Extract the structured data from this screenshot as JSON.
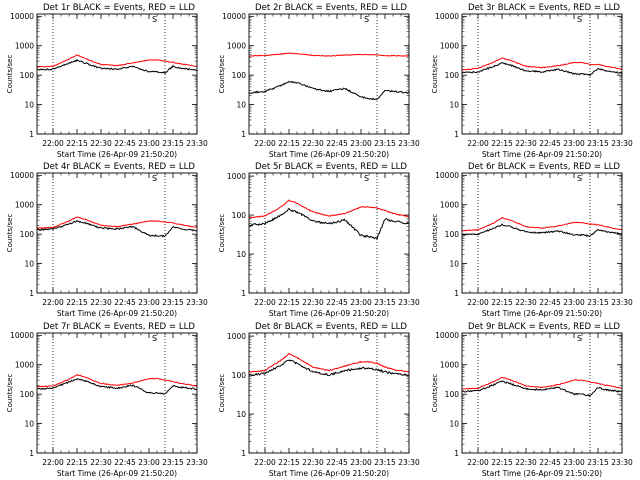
{
  "figure": {
    "x_tick_labels": [
      "22:00",
      "22:15",
      "22:30",
      "22:45",
      "23:00",
      "23:15",
      "23:30"
    ],
    "colors": {
      "events": "#000000",
      "lld": "#ff0000",
      "background": "#ffffff"
    }
  },
  "chart_data": [
    {
      "type": "line",
      "title": "Det 1r BLACK = Events, RED = LLD",
      "xlabel": "Start Time (26-Apr-09 21:50:20)",
      "ylabel": "Counts/sec",
      "yscale": "log",
      "ylim": [
        1,
        12000
      ],
      "x_tick_labels": [
        "22:00",
        "22:15",
        "22:30",
        "22:45",
        "23:00",
        "23:15",
        "23:30"
      ],
      "y_tick_labels": [
        "1",
        "10",
        "100",
        "1000",
        "10000"
      ],
      "dotted_vlines": [
        "22:00",
        "23:10"
      ],
      "marker_label": "S",
      "x": [
        "21:50",
        "22:00",
        "22:10",
        "22:15",
        "22:20",
        "22:30",
        "22:40",
        "22:50",
        "23:00",
        "23:05",
        "23:10",
        "23:15",
        "23:20",
        "23:30"
      ],
      "series": [
        {
          "name": "BLACK = Events",
          "values": [
            150,
            160,
            250,
            320,
            260,
            170,
            160,
            200,
            130,
            130,
            120,
            200,
            170,
            150
          ]
        },
        {
          "name": "RED = LLD",
          "values": [
            190,
            200,
            350,
            480,
            370,
            230,
            210,
            260,
            330,
            330,
            300,
            270,
            240,
            200
          ]
        }
      ]
    },
    {
      "type": "line",
      "title": "Det 2r BLACK = Events, RED = LLD",
      "xlabel": "Start Time (26-Apr-09 21:50:20)",
      "ylabel": "Counts/sec",
      "yscale": "log",
      "ylim": [
        1,
        12000
      ],
      "x_tick_labels": [
        "22:00",
        "22:15",
        "22:30",
        "22:45",
        "23:00",
        "23:15",
        "23:30"
      ],
      "y_tick_labels": [
        "1",
        "10",
        "100",
        "1000",
        "10000"
      ],
      "dotted_vlines": [
        "22:00",
        "23:10"
      ],
      "marker_label": "S",
      "x": [
        "21:50",
        "22:00",
        "22:10",
        "22:15",
        "22:20",
        "22:30",
        "22:40",
        "22:50",
        "23:00",
        "23:05",
        "23:10",
        "23:15",
        "23:20",
        "23:30"
      ],
      "series": [
        {
          "name": "BLACK = Events",
          "values": [
            25,
            28,
            45,
            60,
            55,
            35,
            28,
            35,
            18,
            16,
            15,
            30,
            28,
            25
          ]
        },
        {
          "name": "RED = LLD",
          "values": [
            450,
            470,
            520,
            560,
            540,
            470,
            450,
            480,
            500,
            500,
            490,
            460,
            460,
            450
          ]
        }
      ]
    },
    {
      "type": "line",
      "title": "Det 3r BLACK = Events, RED = LLD",
      "xlabel": "Start Time (26-Apr-09 21:50:20)",
      "ylabel": "Counts/sec",
      "yscale": "log",
      "ylim": [
        1,
        12000
      ],
      "x_tick_labels": [
        "22:00",
        "22:15",
        "22:30",
        "22:45",
        "23:00",
        "23:15",
        "23:30"
      ],
      "y_tick_labels": [
        "1",
        "10",
        "100",
        "1000",
        "10000"
      ],
      "dotted_vlines": [
        "22:00",
        "23:10"
      ],
      "marker_label": "S",
      "x": [
        "21:50",
        "22:00",
        "22:10",
        "22:15",
        "22:20",
        "22:30",
        "22:40",
        "22:50",
        "23:00",
        "23:05",
        "23:10",
        "23:15",
        "23:20",
        "23:30"
      ],
      "series": [
        {
          "name": "BLACK = Events",
          "values": [
            120,
            130,
            200,
            260,
            220,
            140,
            130,
            160,
            110,
            110,
            100,
            170,
            140,
            120
          ]
        },
        {
          "name": "RED = LLD",
          "values": [
            150,
            170,
            280,
            380,
            320,
            200,
            180,
            210,
            270,
            270,
            230,
            230,
            200,
            160
          ]
        }
      ]
    },
    {
      "type": "line",
      "title": "Det 4r BLACK = Events, RED = LLD",
      "xlabel": "Start Time (26-Apr-09 21:50:20)",
      "ylabel": "Counts/sec",
      "yscale": "log",
      "ylim": [
        1,
        12000
      ],
      "x_tick_labels": [
        "22:00",
        "22:15",
        "22:30",
        "22:45",
        "23:00",
        "23:15",
        "23:30"
      ],
      "y_tick_labels": [
        "1",
        "10",
        "100",
        "1000",
        "10000"
      ],
      "dotted_vlines": [
        "22:00",
        "23:10"
      ],
      "marker_label": "S",
      "x": [
        "21:50",
        "22:00",
        "22:10",
        "22:15",
        "22:20",
        "22:30",
        "22:40",
        "22:50",
        "23:00",
        "23:05",
        "23:10",
        "23:15",
        "23:20",
        "23:30"
      ],
      "series": [
        {
          "name": "BLACK = Events",
          "values": [
            140,
            150,
            220,
            280,
            240,
            160,
            150,
            180,
            90,
            90,
            85,
            180,
            150,
            130
          ]
        },
        {
          "name": "RED = LLD",
          "values": [
            160,
            170,
            280,
            380,
            320,
            200,
            180,
            220,
            280,
            280,
            260,
            240,
            210,
            170
          ]
        }
      ]
    },
    {
      "type": "line",
      "title": "Det 5r BLACK = Events, RED = LLD",
      "xlabel": "Start Time (26-Apr-09 21:50:20)",
      "ylabel": "Counts/sec",
      "yscale": "log",
      "ylim": [
        1,
        1200
      ],
      "x_tick_labels": [
        "22:00",
        "22:15",
        "22:30",
        "22:45",
        "23:00",
        "23:15",
        "23:30"
      ],
      "y_tick_labels": [
        "1",
        "10",
        "100",
        "1000"
      ],
      "dotted_vlines": [
        "22:00",
        "23:10"
      ],
      "marker_label": "S",
      "x": [
        "21:50",
        "22:00",
        "22:10",
        "22:15",
        "22:20",
        "22:30",
        "22:40",
        "22:50",
        "23:00",
        "23:05",
        "23:10",
        "23:15",
        "23:20",
        "23:30"
      ],
      "series": [
        {
          "name": "BLACK = Events",
          "values": [
            55,
            60,
            100,
            140,
            120,
            70,
            60,
            75,
            30,
            28,
            25,
            80,
            70,
            60
          ]
        },
        {
          "name": "RED = LLD",
          "values": [
            85,
            95,
            160,
            240,
            200,
            120,
            95,
            110,
            160,
            160,
            150,
            130,
            110,
            90
          ]
        }
      ]
    },
    {
      "type": "line",
      "title": "Det 6r BLACK = Events, RED = LLD",
      "xlabel": "Start Time (26-Apr-09 21:50:20)",
      "ylabel": "Counts/sec",
      "yscale": "log",
      "ylim": [
        1,
        12000
      ],
      "x_tick_labels": [
        "22:00",
        "22:15",
        "22:30",
        "22:45",
        "23:00",
        "23:15",
        "23:30"
      ],
      "y_tick_labels": [
        "1",
        "10",
        "100",
        "1000",
        "10000"
      ],
      "dotted_vlines": [
        "22:00",
        "23:10"
      ],
      "marker_label": "S",
      "x": [
        "21:50",
        "22:00",
        "22:10",
        "22:15",
        "22:20",
        "22:30",
        "22:40",
        "22:50",
        "23:00",
        "23:05",
        "23:10",
        "23:15",
        "23:20",
        "23:30"
      ],
      "series": [
        {
          "name": "BLACK = Events",
          "values": [
            95,
            100,
            160,
            210,
            180,
            120,
            110,
            130,
            95,
            95,
            85,
            140,
            120,
            100
          ]
        },
        {
          "name": "RED = LLD",
          "values": [
            130,
            140,
            240,
            360,
            300,
            180,
            160,
            190,
            250,
            250,
            220,
            210,
            180,
            140
          ]
        }
      ]
    },
    {
      "type": "line",
      "title": "Det 7r BLACK = Events, RED = LLD",
      "xlabel": "Start Time (26-Apr-09 21:50:20)",
      "ylabel": "Counts/sec",
      "yscale": "log",
      "ylim": [
        1,
        12000
      ],
      "x_tick_labels": [
        "22:00",
        "22:15",
        "22:30",
        "22:45",
        "23:00",
        "23:15",
        "23:30"
      ],
      "y_tick_labels": [
        "1",
        "10",
        "100",
        "1000",
        "10000"
      ],
      "dotted_vlines": [
        "22:00",
        "23:10"
      ],
      "marker_label": "S",
      "x": [
        "21:50",
        "22:00",
        "22:10",
        "22:15",
        "22:20",
        "22:30",
        "22:40",
        "22:50",
        "23:00",
        "23:05",
        "23:10",
        "23:15",
        "23:20",
        "23:30"
      ],
      "series": [
        {
          "name": "BLACK = Events",
          "values": [
            150,
            160,
            260,
            330,
            280,
            180,
            160,
            200,
            110,
            110,
            100,
            200,
            170,
            150
          ]
        },
        {
          "name": "RED = LLD",
          "values": [
            180,
            190,
            320,
            460,
            380,
            230,
            200,
            240,
            340,
            340,
            300,
            270,
            230,
            190
          ]
        }
      ]
    },
    {
      "type": "line",
      "title": "Det 8r BLACK = Events, RED = LLD",
      "xlabel": "Start Time (26-Apr-09 21:50:20)",
      "ylabel": "Counts/sec",
      "yscale": "log",
      "ylim": [
        1,
        1200
      ],
      "x_tick_labels": [
        "22:00",
        "22:15",
        "22:30",
        "22:45",
        "23:00",
        "23:15",
        "23:30"
      ],
      "y_tick_labels": [
        "1",
        "10",
        "100",
        "1000"
      ],
      "dotted_vlines": [
        "22:00",
        "23:10"
      ],
      "marker_label": "S",
      "x": [
        "21:50",
        "22:00",
        "22:10",
        "22:15",
        "22:20",
        "22:30",
        "22:40",
        "22:50",
        "23:00",
        "23:05",
        "23:10",
        "23:15",
        "23:20",
        "23:30"
      ],
      "series": [
        {
          "name": "BLACK = Events",
          "values": [
            100,
            110,
            180,
            250,
            200,
            120,
            100,
            130,
            150,
            150,
            140,
            120,
            110,
            100
          ]
        },
        {
          "name": "RED = LLD",
          "values": [
            120,
            130,
            240,
            350,
            280,
            160,
            130,
            170,
            220,
            220,
            200,
            160,
            140,
            120
          ]
        }
      ]
    },
    {
      "type": "line",
      "title": "Det 9r BLACK = Events, RED = LLD",
      "xlabel": "Start Time (26-Apr-09 21:50:20)",
      "ylabel": "Counts/sec",
      "yscale": "log",
      "ylim": [
        1,
        12000
      ],
      "x_tick_labels": [
        "22:00",
        "22:15",
        "22:30",
        "22:45",
        "23:00",
        "23:15",
        "23:30"
      ],
      "y_tick_labels": [
        "1",
        "10",
        "100",
        "1000",
        "10000"
      ],
      "dotted_vlines": [
        "22:00",
        "23:10"
      ],
      "marker_label": "S",
      "x": [
        "21:50",
        "22:00",
        "22:10",
        "22:15",
        "22:20",
        "22:30",
        "22:40",
        "22:50",
        "23:00",
        "23:05",
        "23:10",
        "23:15",
        "23:20",
        "23:30"
      ],
      "series": [
        {
          "name": "BLACK = Events",
          "values": [
            120,
            130,
            210,
            270,
            230,
            150,
            140,
            170,
            100,
            100,
            90,
            170,
            140,
            120
          ]
        },
        {
          "name": "RED = LLD",
          "values": [
            150,
            160,
            270,
            370,
            310,
            190,
            170,
            210,
            300,
            300,
            260,
            230,
            200,
            160
          ]
        }
      ]
    }
  ]
}
